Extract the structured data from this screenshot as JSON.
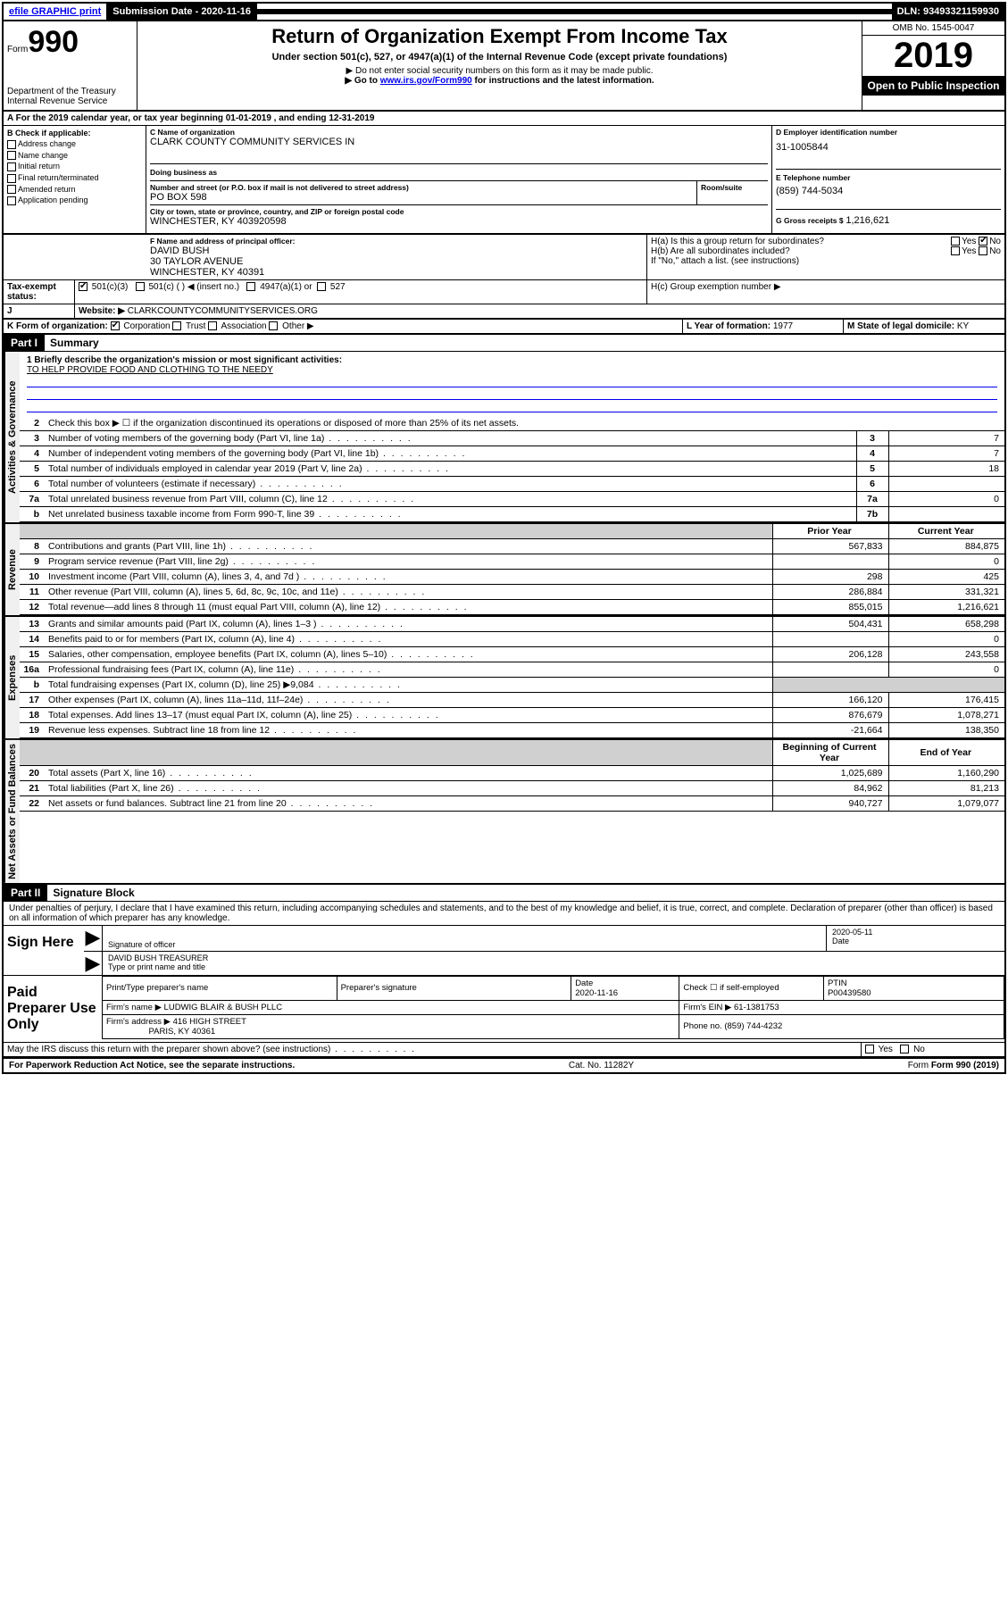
{
  "topbar": {
    "efile": "efile GRAPHIC print",
    "submission_label": "Submission Date - 2020-11-16",
    "dln": "DLN: 93493321159930"
  },
  "header": {
    "form_prefix": "Form",
    "form_number": "990",
    "title": "Return of Organization Exempt From Income Tax",
    "subtitle": "Under section 501(c), 527, or 4947(a)(1) of the Internal Revenue Code (except private foundations)",
    "note1": "▶ Do not enter social security numbers on this form as it may be made public.",
    "note2_pre": "▶ Go to ",
    "note2_link": "www.irs.gov/Form990",
    "note2_post": " for instructions and the latest information.",
    "dept": "Department of the Treasury",
    "irs": "Internal Revenue Service",
    "omb": "OMB No. 1545-0047",
    "year": "2019",
    "open": "Open to Public Inspection"
  },
  "period": {
    "line": "A For the 2019 calendar year, or tax year beginning 01-01-2019     , and ending 12-31-2019"
  },
  "boxB": {
    "label": "B Check if applicable:",
    "items": [
      "Address change",
      "Name change",
      "Initial return",
      "Final return/terminated",
      "Amended return",
      "Application pending"
    ]
  },
  "boxC": {
    "name_label": "C Name of organization",
    "name": "CLARK COUNTY COMMUNITY SERVICES IN",
    "dba_label": "Doing business as",
    "addr_label": "Number and street (or P.O. box if mail is not delivered to street address)",
    "room_label": "Room/suite",
    "addr": "PO BOX 598",
    "city_label": "City or town, state or province, country, and ZIP or foreign postal code",
    "city": "WINCHESTER, KY  403920598"
  },
  "boxD": {
    "label": "D Employer identification number",
    "val": "31-1005844"
  },
  "boxE": {
    "label": "E Telephone number",
    "val": "(859) 744-5034"
  },
  "boxG": {
    "label": "G Gross receipts $",
    "val": "1,216,621"
  },
  "boxF": {
    "label": "F  Name and address of principal officer:",
    "name": "DAVID BUSH",
    "addr1": "30 TAYLOR AVENUE",
    "addr2": "WINCHESTER, KY  40391"
  },
  "boxH": {
    "a": "H(a)  Is this a group return for subordinates?",
    "b": "H(b)  Are all subordinates included?",
    "note": "If \"No,\" attach a list. (see instructions)",
    "c": "H(c)  Group exemption number ▶",
    "yes": "Yes",
    "no": "No"
  },
  "boxI": {
    "label": "Tax-exempt status:",
    "opts": [
      "501(c)(3)",
      "501(c) (  ) ◀ (insert no.)",
      "4947(a)(1) or",
      "527"
    ]
  },
  "boxJ": {
    "label": "Website: ▶",
    "val": "CLARKCOUNTYCOMMUNITYSERVICES.ORG"
  },
  "boxK": {
    "label": "K Form of organization:",
    "opts": [
      "Corporation",
      "Trust",
      "Association",
      "Other ▶"
    ]
  },
  "boxL": {
    "label": "L Year of formation:",
    "val": "1977"
  },
  "boxM": {
    "label": "M State of legal domicile:",
    "val": "KY"
  },
  "part1": {
    "tag": "Part I",
    "title": "Summary"
  },
  "mission": {
    "q": "1  Briefly describe the organization's mission or most significant activities:",
    "text": "TO HELP PROVIDE FOOD AND CLOTHING TO THE NEEDY"
  },
  "summary_lines": {
    "l2": "Check this box ▶ ☐  if the organization discontinued its operations or disposed of more than 25% of its net assets.",
    "l3": {
      "num": "3",
      "desc": "Number of voting members of the governing body (Part VI, line 1a)",
      "box": "3",
      "val": "7"
    },
    "l4": {
      "num": "4",
      "desc": "Number of independent voting members of the governing body (Part VI, line 1b)",
      "box": "4",
      "val": "7"
    },
    "l5": {
      "num": "5",
      "desc": "Total number of individuals employed in calendar year 2019 (Part V, line 2a)",
      "box": "5",
      "val": "18"
    },
    "l6": {
      "num": "6",
      "desc": "Total number of volunteers (estimate if necessary)",
      "box": "6",
      "val": ""
    },
    "l7a": {
      "num": "7a",
      "desc": "Total unrelated business revenue from Part VIII, column (C), line 12",
      "box": "7a",
      "val": "0"
    },
    "l7b": {
      "num": "b",
      "desc": "Net unrelated business taxable income from Form 990-T, line 39",
      "box": "7b",
      "val": ""
    }
  },
  "rev_hdr": {
    "prior": "Prior Year",
    "current": "Current Year"
  },
  "revenue": [
    {
      "num": "8",
      "desc": "Contributions and grants (Part VIII, line 1h)",
      "p": "567,833",
      "c": "884,875"
    },
    {
      "num": "9",
      "desc": "Program service revenue (Part VIII, line 2g)",
      "p": "",
      "c": "0"
    },
    {
      "num": "10",
      "desc": "Investment income (Part VIII, column (A), lines 3, 4, and 7d )",
      "p": "298",
      "c": "425"
    },
    {
      "num": "11",
      "desc": "Other revenue (Part VIII, column (A), lines 5, 6d, 8c, 9c, 10c, and 11e)",
      "p": "286,884",
      "c": "331,321"
    },
    {
      "num": "12",
      "desc": "Total revenue—add lines 8 through 11 (must equal Part VIII, column (A), line 12)",
      "p": "855,015",
      "c": "1,216,621"
    }
  ],
  "expenses": [
    {
      "num": "13",
      "desc": "Grants and similar amounts paid (Part IX, column (A), lines 1–3 )",
      "p": "504,431",
      "c": "658,298"
    },
    {
      "num": "14",
      "desc": "Benefits paid to or for members (Part IX, column (A), line 4)",
      "p": "",
      "c": "0"
    },
    {
      "num": "15",
      "desc": "Salaries, other compensation, employee benefits (Part IX, column (A), lines 5–10)",
      "p": "206,128",
      "c": "243,558"
    },
    {
      "num": "16a",
      "desc": "Professional fundraising fees (Part IX, column (A), line 11e)",
      "p": "",
      "c": "0"
    },
    {
      "num": "b",
      "desc": "Total fundraising expenses (Part IX, column (D), line 25) ▶9,084",
      "p": null,
      "c": null
    },
    {
      "num": "17",
      "desc": "Other expenses (Part IX, column (A), lines 11a–11d, 11f–24e)",
      "p": "166,120",
      "c": "176,415"
    },
    {
      "num": "18",
      "desc": "Total expenses. Add lines 13–17 (must equal Part IX, column (A), line 25)",
      "p": "876,679",
      "c": "1,078,271"
    },
    {
      "num": "19",
      "desc": "Revenue less expenses. Subtract line 18 from line 12",
      "p": "-21,664",
      "c": "138,350"
    }
  ],
  "na_hdr": {
    "prior": "Beginning of Current Year",
    "current": "End of Year"
  },
  "netassets": [
    {
      "num": "20",
      "desc": "Total assets (Part X, line 16)",
      "p": "1,025,689",
      "c": "1,160,290"
    },
    {
      "num": "21",
      "desc": "Total liabilities (Part X, line 26)",
      "p": "84,962",
      "c": "81,213"
    },
    {
      "num": "22",
      "desc": "Net assets or fund balances. Subtract line 21 from line 20",
      "p": "940,727",
      "c": "1,079,077"
    }
  ],
  "part2": {
    "tag": "Part II",
    "title": "Signature Block"
  },
  "perjury": "Under penalties of perjury, I declare that I have examined this return, including accompanying schedules and statements, and to the best of my knowledge and belief, it is true, correct, and complete. Declaration of preparer (other than officer) is based on all information of which preparer has any knowledge.",
  "sign": {
    "here": "Sign Here",
    "sig_label": "Signature of officer",
    "date": "2020-05-11",
    "date_label": "Date",
    "name": "DAVID BUSH TREASURER",
    "name_label": "Type or print name and title"
  },
  "prep": {
    "label": "Paid Preparer Use Only",
    "h1": "Print/Type preparer's name",
    "h2": "Preparer's signature",
    "h3": "Date",
    "h3v": "2020-11-16",
    "h4": "Check ☐ if self-employed",
    "h5": "PTIN",
    "h5v": "P00439580",
    "firm_label": "Firm's name    ▶",
    "firm": "LUDWIG BLAIR & BUSH PLLC",
    "ein_label": "Firm's EIN ▶",
    "ein": "61-1381753",
    "addr_label": "Firm's address ▶",
    "addr1": "416 HIGH STREET",
    "addr2": "PARIS, KY  40361",
    "phone_label": "Phone no.",
    "phone": "(859) 744-4232"
  },
  "discuss": "May the IRS discuss this return with the preparer shown above? (see instructions)",
  "footer": {
    "pra": "For Paperwork Reduction Act Notice, see the separate instructions.",
    "cat": "Cat. No. 11282Y",
    "form": "Form 990 (2019)"
  },
  "vtabs": {
    "gov": "Activities & Governance",
    "rev": "Revenue",
    "exp": "Expenses",
    "na": "Net Assets or Fund Balances"
  }
}
